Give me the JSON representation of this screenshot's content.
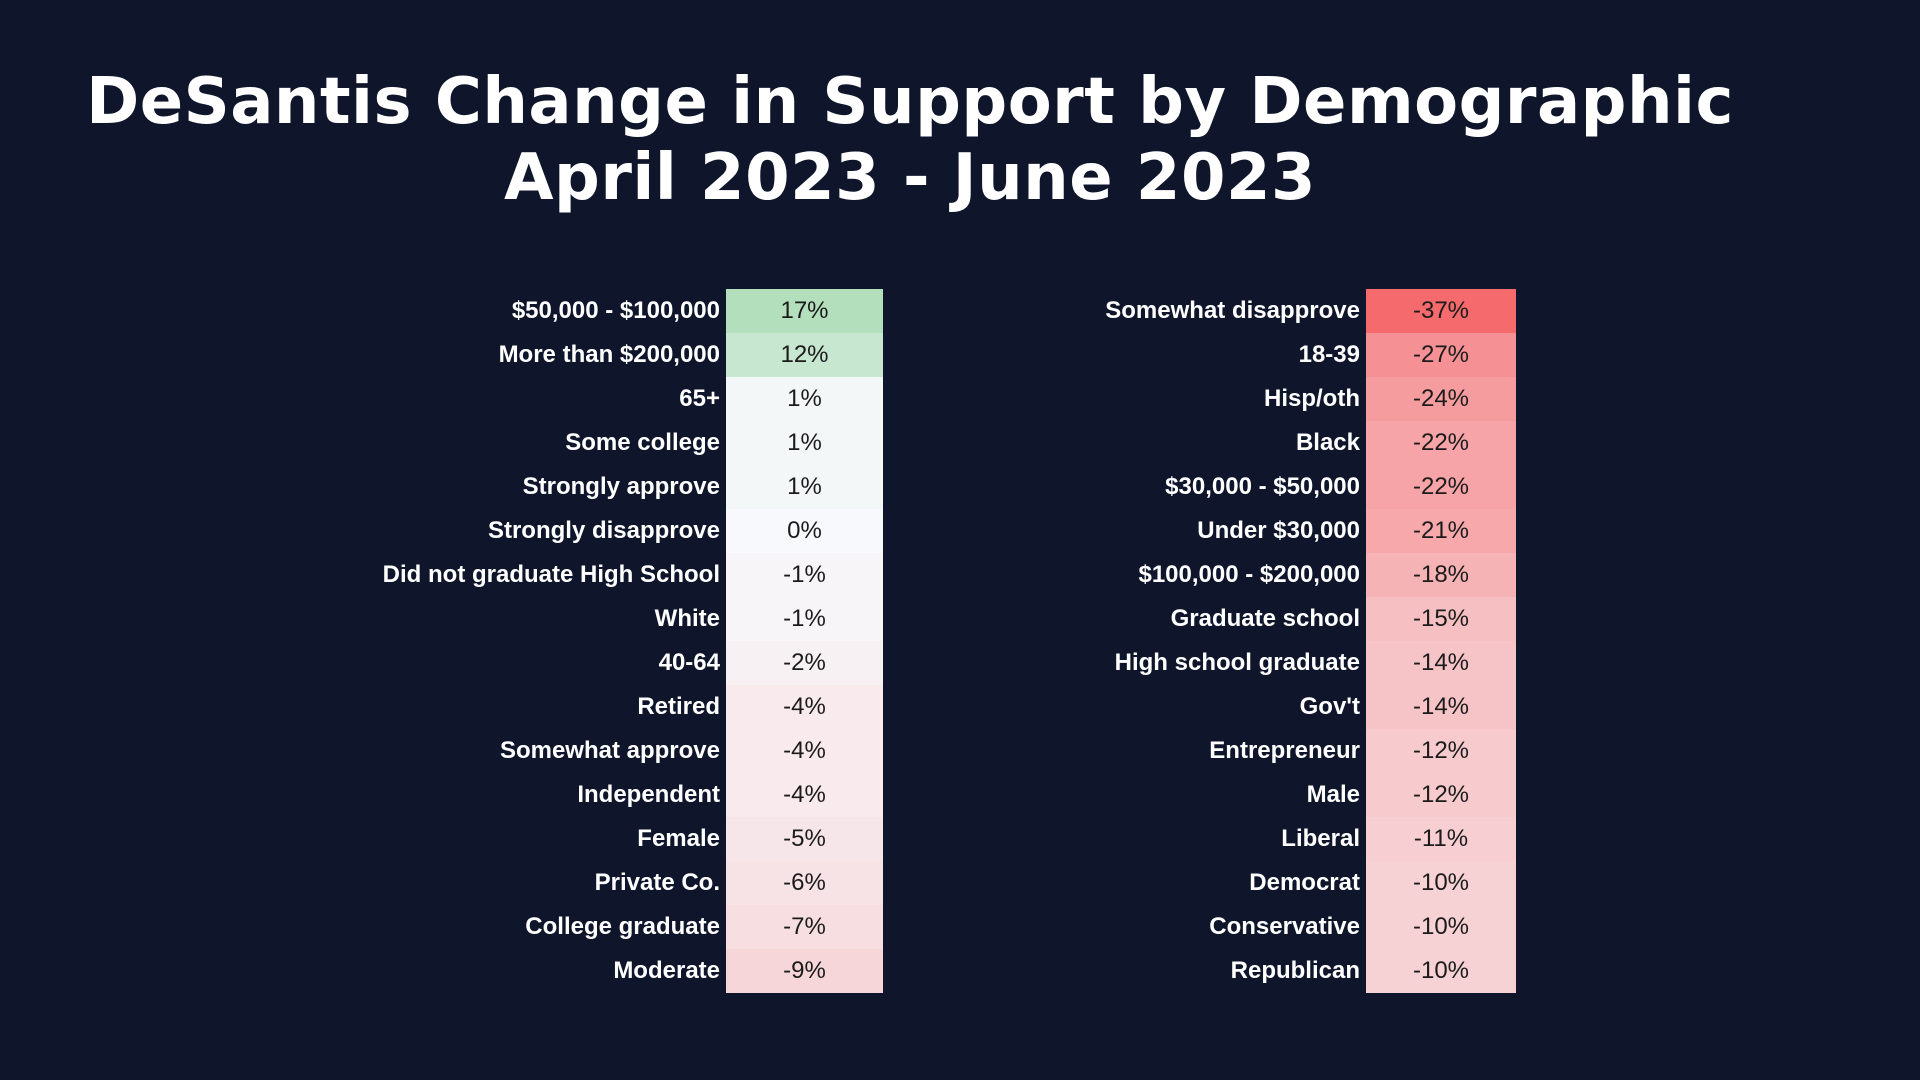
{
  "title": {
    "line1": "DeSantis Change in Support by Demographic",
    "line2": "April 2023 - June 2023"
  },
  "chart_data": {
    "type": "table",
    "tables": [
      {
        "rows": [
          {
            "label": "$50,000 - $100,000",
            "value": 17,
            "display": "17%"
          },
          {
            "label": "More than $200,000",
            "value": 12,
            "display": "12%"
          },
          {
            "label": "65+",
            "value": 1,
            "display": "1%"
          },
          {
            "label": "Some college",
            "value": 1,
            "display": "1%"
          },
          {
            "label": "Strongly approve",
            "value": 1,
            "display": "1%"
          },
          {
            "label": "Strongly disapprove",
            "value": 0,
            "display": "0%"
          },
          {
            "label": "Did not graduate High School",
            "value": -1,
            "display": "-1%"
          },
          {
            "label": "White",
            "value": -1,
            "display": "-1%"
          },
          {
            "label": "40-64",
            "value": -2,
            "display": "-2%"
          },
          {
            "label": "Retired",
            "value": -4,
            "display": "-4%"
          },
          {
            "label": "Somewhat approve",
            "value": -4,
            "display": "-4%"
          },
          {
            "label": "Independent",
            "value": -4,
            "display": "-4%"
          },
          {
            "label": "Female",
            "value": -5,
            "display": "-5%"
          },
          {
            "label": "Private Co.",
            "value": -6,
            "display": "-6%"
          },
          {
            "label": "College graduate",
            "value": -7,
            "display": "-7%"
          },
          {
            "label": "Moderate",
            "value": -9,
            "display": "-9%"
          }
        ]
      },
      {
        "rows": [
          {
            "label": "Somewhat disapprove",
            "value": -37,
            "display": "-37%"
          },
          {
            "label": "18-39",
            "value": -27,
            "display": "-27%"
          },
          {
            "label": "Hisp/oth",
            "value": -24,
            "display": "-24%"
          },
          {
            "label": "Black",
            "value": -22,
            "display": "-22%"
          },
          {
            "label": "$30,000 - $50,000",
            "value": -22,
            "display": "-22%"
          },
          {
            "label": "Under $30,000",
            "value": -21,
            "display": "-21%"
          },
          {
            "label": "$100,000 - $200,000",
            "value": -18,
            "display": "-18%"
          },
          {
            "label": "Graduate school",
            "value": -15,
            "display": "-15%"
          },
          {
            "label": "High school graduate",
            "value": -14,
            "display": "-14%"
          },
          {
            "label": "Gov't",
            "value": -14,
            "display": "-14%"
          },
          {
            "label": "Entrepreneur",
            "value": -12,
            "display": "-12%"
          },
          {
            "label": "Male",
            "value": -12,
            "display": "-12%"
          },
          {
            "label": "Liberal",
            "value": -11,
            "display": "-11%"
          },
          {
            "label": "Democrat",
            "value": -10,
            "display": "-10%"
          },
          {
            "label": "Conservative",
            "value": -10,
            "display": "-10%"
          },
          {
            "label": "Republican",
            "value": -10,
            "display": "-10%"
          }
        ]
      }
    ],
    "color_scale": {
      "positive_max": "#b4dfbd",
      "neutral": "#f8f9fc",
      "negative_max": "#f46a6d",
      "min": -37,
      "max": 17
    }
  },
  "colors": {
    "background": "#0f162b",
    "text": "#ffffff",
    "cell_text": "#1b1b1b"
  }
}
